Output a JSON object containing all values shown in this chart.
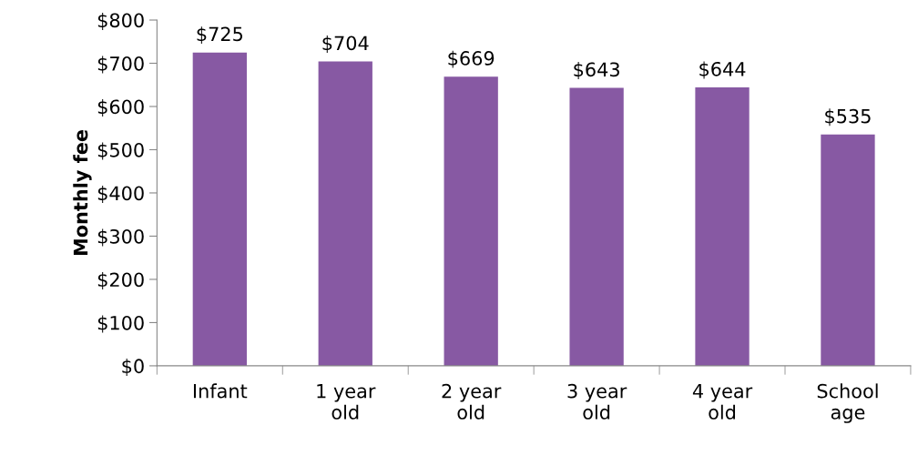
{
  "chart_data": {
    "type": "bar",
    "ylabel": "Monthly fee",
    "categories": [
      "Infant",
      "1 year\nold",
      "2 year\nold",
      "3 year\nold",
      "4 year\nold",
      "School\nage"
    ],
    "values": [
      725,
      704,
      669,
      643,
      644,
      535
    ],
    "value_labels": [
      "$725",
      "$704",
      "$669",
      "$643",
      "$644",
      "$535"
    ],
    "color": "#8759a3",
    "ylim": [
      0,
      800
    ],
    "yticks": [
      {
        "value": 0,
        "label": "$0"
      },
      {
        "value": 100,
        "label": "$100"
      },
      {
        "value": 200,
        "label": "$200"
      },
      {
        "value": 300,
        "label": "$300"
      },
      {
        "value": 400,
        "label": "$400"
      },
      {
        "value": 500,
        "label": "$500"
      },
      {
        "value": 600,
        "label": "$600"
      },
      {
        "value": 700,
        "label": "$700"
      },
      {
        "value": 800,
        "label": "$800"
      }
    ],
    "grid": false,
    "legend": false
  }
}
